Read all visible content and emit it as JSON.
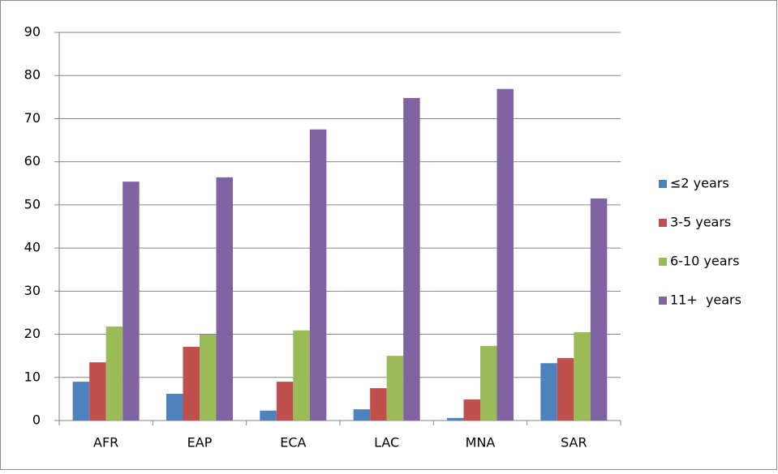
{
  "chart_data": {
    "type": "bar",
    "categories": [
      "AFR",
      "EAP",
      "ECA",
      "LAC",
      "MNA",
      "SAR"
    ],
    "series": [
      {
        "name": "≤2 years",
        "color": "#4f81bd",
        "values": [
          9.0,
          6.2,
          2.3,
          2.6,
          0.6,
          13.3
        ]
      },
      {
        "name": "3-5 years",
        "color": "#c0504d",
        "values": [
          13.5,
          17.1,
          9.0,
          7.5,
          4.9,
          14.5
        ]
      },
      {
        "name": "6-10 years",
        "color": "#9bbb59",
        "values": [
          21.8,
          19.9,
          20.9,
          15.0,
          17.3,
          20.5
        ]
      },
      {
        "name": "11+  years",
        "color": "#8064a2",
        "values": [
          55.4,
          56.4,
          67.5,
          74.8,
          76.9,
          51.5
        ]
      }
    ],
    "ylim": [
      0,
      90
    ],
    "yticks": [
      0,
      10,
      20,
      30,
      40,
      50,
      60,
      70,
      80,
      90
    ],
    "grid": true,
    "legend": "right"
  }
}
